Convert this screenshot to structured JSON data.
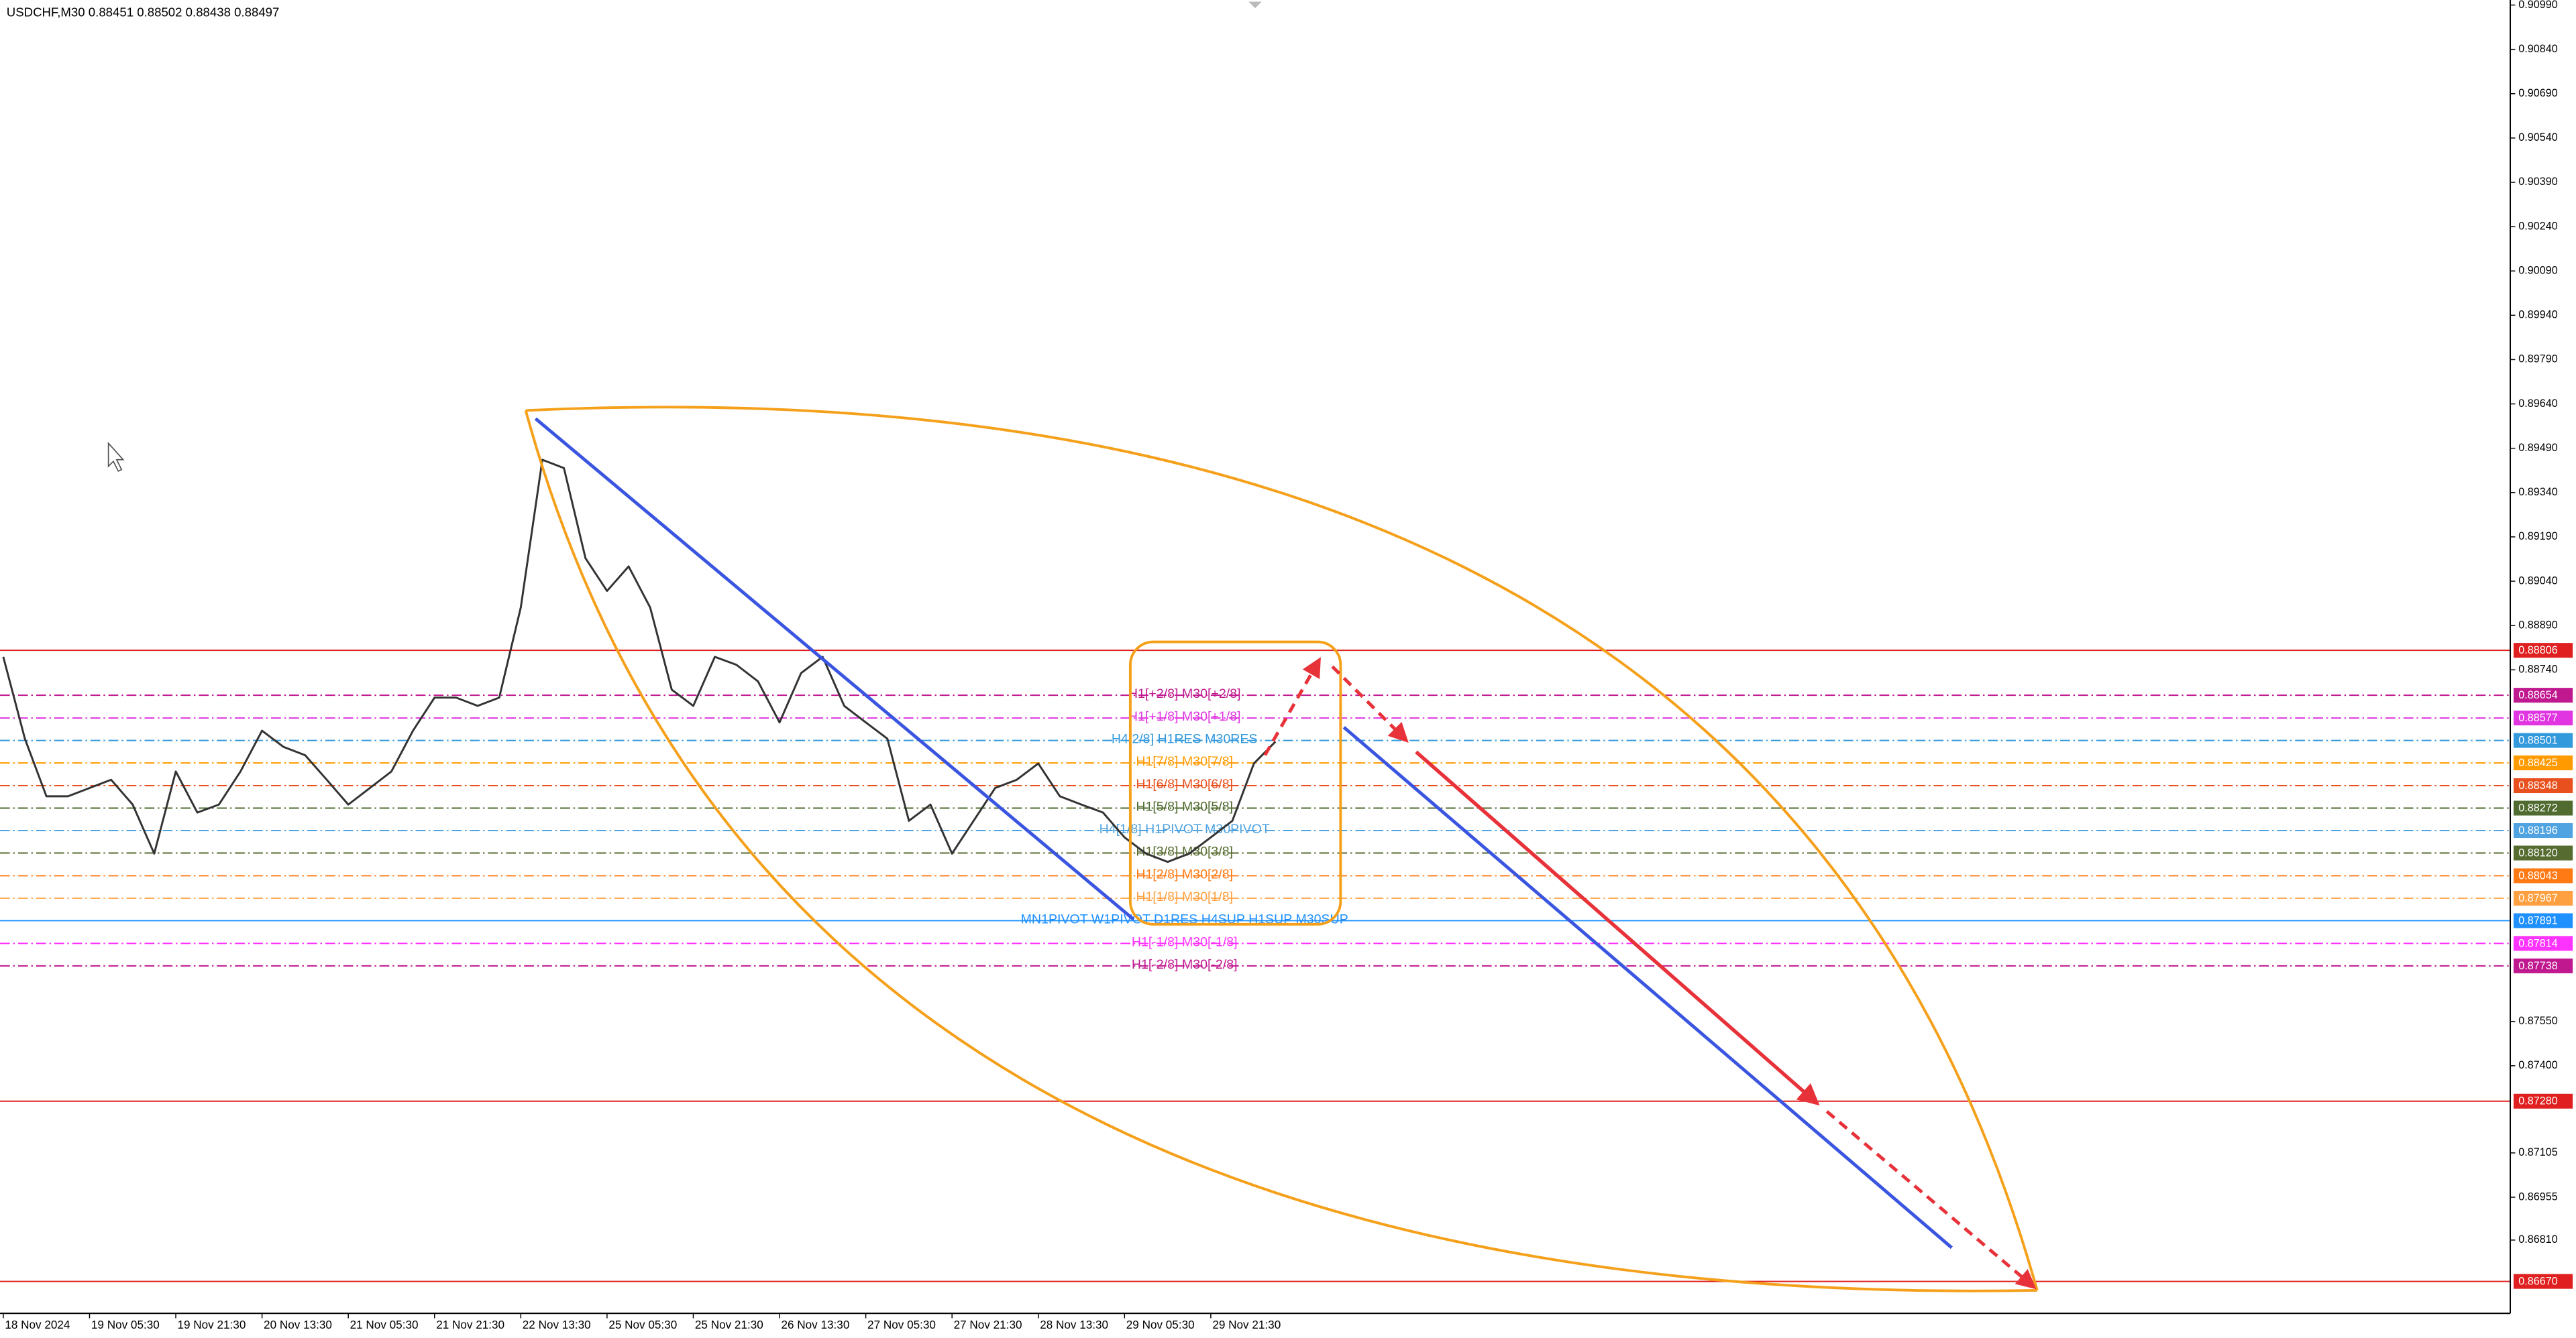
{
  "chart_data": {
    "type": "line",
    "title": "USDCHF,M30  0.88451 0.88502 0.88438 0.88497",
    "color": "#333333",
    "grid": false,
    "categories": [
      "18 Nov 2024",
      null,
      null,
      null,
      "19 Nov 05:30",
      null,
      null,
      null,
      "19 Nov 21:30",
      null,
      null,
      null,
      "20 Nov 13:30",
      null,
      null,
      null,
      "21 Nov 05:30",
      null,
      null,
      null,
      "21 Nov 21:30",
      null,
      null,
      null,
      "22 Nov 13:30",
      null,
      null,
      null,
      "25 Nov 05:30",
      null,
      null,
      null,
      "25 Nov 21:30",
      null,
      null,
      null,
      "26 Nov 13:30",
      null,
      null,
      null,
      "27 Nov 05:30",
      null,
      null,
      null,
      "27 Nov 21:30",
      null,
      null,
      null,
      "28 Nov 13:30",
      null,
      null,
      null,
      "29 Nov 05:30",
      null,
      null,
      null,
      "29 Nov 21:30",
      null,
      null,
      null
    ],
    "values": [
      0.88784,
      0.88507,
      0.88312,
      0.88312,
      0.8834,
      0.88368,
      0.88284,
      0.88118,
      0.88396,
      0.88257,
      0.88284,
      0.88396,
      0.88534,
      0.88479,
      0.88451,
      0.88368,
      0.88284,
      0.8834,
      0.88396,
      0.88534,
      0.88646,
      0.88646,
      0.88618,
      0.88646,
      0.88951,
      0.89451,
      0.89423,
      0.89118,
      0.89007,
      0.8909,
      0.88951,
      0.88673,
      0.88618,
      0.88784,
      0.88757,
      0.88701,
      0.88562,
      0.88729,
      0.88784,
      0.88618,
      0.88562,
      0.88507,
      0.88229,
      0.88284,
      0.88118,
      0.88229,
      0.8834,
      0.88368,
      0.88423,
      0.88312,
      0.88284,
      0.88257,
      0.88173,
      0.88118,
      0.8809,
      0.88118,
      0.88173,
      0.88229,
      0.88423,
      0.88497
    ],
    "ylim": [
      0.91007,
      0.86562
    ],
    "yticks": [
      {
        "value": 0.9099,
        "label": "0.90990"
      },
      {
        "value": 0.9084,
        "label": "0.90840"
      },
      {
        "value": 0.9069,
        "label": "0.90690"
      },
      {
        "value": 0.9054,
        "label": "0.90540"
      },
      {
        "value": 0.9039,
        "label": "0.90390"
      },
      {
        "value": 0.9024,
        "label": "0.90240"
      },
      {
        "value": 0.9009,
        "label": "0.90090"
      },
      {
        "value": 0.8994,
        "label": "0.89940"
      },
      {
        "value": 0.8979,
        "label": "0.89790"
      },
      {
        "value": 0.8964,
        "label": "0.89640"
      },
      {
        "value": 0.8949,
        "label": "0.89490"
      },
      {
        "value": 0.8934,
        "label": "0.89340"
      },
      {
        "value": 0.8919,
        "label": "0.89190"
      },
      {
        "value": 0.8904,
        "label": "0.89040"
      },
      {
        "value": 0.8889,
        "label": "0.88890"
      },
      {
        "value": 0.8874,
        "label": "0.88740"
      },
      {
        "value": 0.8755,
        "label": "0.87550"
      },
      {
        "value": 0.874,
        "label": "0.87400"
      },
      {
        "value": 0.87105,
        "label": "0.87105"
      },
      {
        "value": 0.86955,
        "label": "0.86955"
      },
      {
        "value": 0.8681,
        "label": "0.86810"
      }
    ],
    "levels": [
      {
        "price": 0.88806,
        "tag": "0.88806",
        "color": "#e02020",
        "style": "solid"
      },
      {
        "price": 0.88654,
        "tag": "0.88654",
        "color": "#c0188f",
        "style": "dashdot",
        "text": "H1[+2/8] M30[+2/8]"
      },
      {
        "price": 0.88577,
        "tag": "0.88577",
        "color": "#e035e0",
        "style": "dashdot",
        "text": "H1[+1/8] M30[+1/8]"
      },
      {
        "price": 0.88501,
        "tag": "0.88501",
        "color": "#3399dd",
        "style": "dashdot",
        "text": "H4[2/8] H1RES M30RES"
      },
      {
        "price": 0.88425,
        "tag": "0.88425",
        "color": "#ff9a00",
        "style": "dashdot",
        "text": "H1[7/8] M30[7/8]"
      },
      {
        "price": 0.88348,
        "tag": "0.88348",
        "color": "#e8501e",
        "style": "dashdot",
        "text": "H1[6/8] M30[6/8]"
      },
      {
        "price": 0.88272,
        "tag": "0.88272",
        "color": "#4f6b2f",
        "style": "dashdot",
        "text": "H1[5/8] M30[5/8]"
      },
      {
        "price": 0.88196,
        "tag": "0.88196",
        "color": "#4fa3e0",
        "style": "dashdot",
        "text": "H4[1/8] H1PIVOT M30PIVOT"
      },
      {
        "price": 0.8812,
        "tag": "0.88120",
        "color": "#556b2f",
        "style": "dashdot",
        "text": "H1[3/8] M30[3/8]"
      },
      {
        "price": 0.88043,
        "tag": "0.88043",
        "color": "#ff7a14",
        "style": "dashdot",
        "text": "H1[2/8] M30[2/8]"
      },
      {
        "price": 0.87967,
        "tag": "0.87967",
        "color": "#ffa040",
        "style": "dashdot",
        "text": "H1[1/8] M30[1/8]"
      },
      {
        "price": 0.87891,
        "tag": "0.87891",
        "color": "#1e90ff",
        "style": "solid",
        "text": "MN1PIVOT W1PIVOT D1RES H4SUP H1SUP M30SUP"
      },
      {
        "price": 0.87814,
        "tag": "0.87814",
        "color": "#ff33ff",
        "style": "dashdot",
        "text": "H1[-1/8] M30[-1/8]"
      },
      {
        "price": 0.87738,
        "tag": "0.87738",
        "color": "#c0188f",
        "style": "dashdot",
        "text": "H1[-2/8] M30[-2/8]"
      },
      {
        "price": 0.8728,
        "tag": "0.87280",
        "color": "#e02020",
        "style": "solid"
      },
      {
        "price": 0.8667,
        "tag": "0.86670",
        "color": "#e02020",
        "style": "solid"
      }
    ]
  }
}
